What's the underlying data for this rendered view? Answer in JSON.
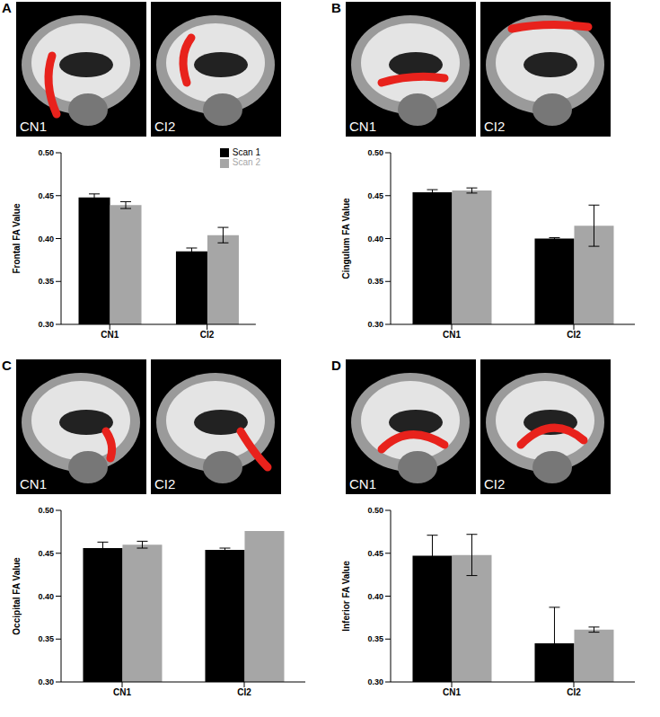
{
  "chart_data": [
    {
      "type": "bar",
      "panel": "A",
      "image_labels": [
        "CN1",
        "CI2"
      ],
      "y_label": "Frontal FA Value",
      "categories": [
        "CN1",
        "CI2"
      ],
      "legend": "top right",
      "series": [
        {
          "name": "Scan 1",
          "color": "#000000",
          "values": [
            0.448,
            0.385
          ],
          "errors": [
            0.004,
            0.004
          ]
        },
        {
          "name": "Scan 2",
          "color": "#a6a6a6",
          "values": [
            0.439,
            0.404
          ],
          "errors": [
            0.004,
            0.009
          ]
        }
      ],
      "ylim": [
        0.3,
        0.5
      ],
      "yticks": [
        {
          "value": 0.3,
          "label": "0.30"
        },
        {
          "value": 0.35,
          "label": "0.35"
        },
        {
          "value": 0.4,
          "label": "0.40"
        },
        {
          "value": 0.45,
          "label": "0.45"
        },
        {
          "value": 0.5,
          "label": "0.50"
        }
      ]
    },
    {
      "type": "bar",
      "panel": "B",
      "image_labels": [
        "CN1",
        "CI2"
      ],
      "y_label": "Cingulum FA Value",
      "categories": [
        "CN1",
        "CI2"
      ],
      "series": [
        {
          "name": "Scan 1",
          "color": "#000000",
          "values": [
            0.454,
            0.4
          ],
          "errors": [
            0.003,
            0.001
          ]
        },
        {
          "name": "Scan 2",
          "color": "#a6a6a6",
          "values": [
            0.456,
            0.415
          ],
          "errors": [
            0.003,
            0.024
          ]
        }
      ],
      "ylim": [
        0.3,
        0.5
      ],
      "yticks": [
        {
          "value": 0.3,
          "label": "0.30"
        },
        {
          "value": 0.35,
          "label": "0.35"
        },
        {
          "value": 0.4,
          "label": "0.40"
        },
        {
          "value": 0.45,
          "label": "0.45"
        },
        {
          "value": 0.5,
          "label": "0.50"
        }
      ]
    },
    {
      "type": "bar",
      "panel": "C",
      "image_labels": [
        "CN1",
        "CI2"
      ],
      "y_label": "Occipital FA Value",
      "categories": [
        "CN1",
        "CI2"
      ],
      "series": [
        {
          "name": "Scan 1",
          "color": "#000000",
          "values": [
            0.456,
            0.454
          ],
          "errors": [
            0.007,
            0.002
          ]
        },
        {
          "name": "Scan 2",
          "color": "#a6a6a6",
          "values": [
            0.46,
            0.476
          ],
          "errors": [
            0.004,
            null
          ]
        }
      ],
      "ylim": [
        0.3,
        0.5
      ],
      "yticks": [
        {
          "value": 0.3,
          "label": "0.30"
        },
        {
          "value": 0.35,
          "label": "0.35"
        },
        {
          "value": 0.4,
          "label": "0.40"
        },
        {
          "value": 0.45,
          "label": "0.45"
        },
        {
          "value": 0.5,
          "label": "0.50"
        }
      ]
    },
    {
      "type": "bar",
      "panel": "D",
      "image_labels": [
        "CN1",
        "CI2"
      ],
      "y_label": "Inferior FA Value",
      "categories": [
        "CN1",
        "CI2"
      ],
      "series": [
        {
          "name": "Scan 1",
          "color": "#000000",
          "values": [
            0.447,
            0.345
          ],
          "errors": [
            0.024,
            0.042
          ]
        },
        {
          "name": "Scan 2",
          "color": "#a6a6a6",
          "values": [
            0.448,
            0.361
          ],
          "errors": [
            0.024,
            0.003
          ]
        }
      ],
      "ylim": [
        0.3,
        0.5
      ],
      "yticks": [
        {
          "value": 0.3,
          "label": "0.30"
        },
        {
          "value": 0.35,
          "label": "0.35"
        },
        {
          "value": 0.4,
          "label": "0.40"
        },
        {
          "value": 0.45,
          "label": "0.45"
        },
        {
          "value": 0.5,
          "label": "0.50"
        }
      ]
    }
  ]
}
